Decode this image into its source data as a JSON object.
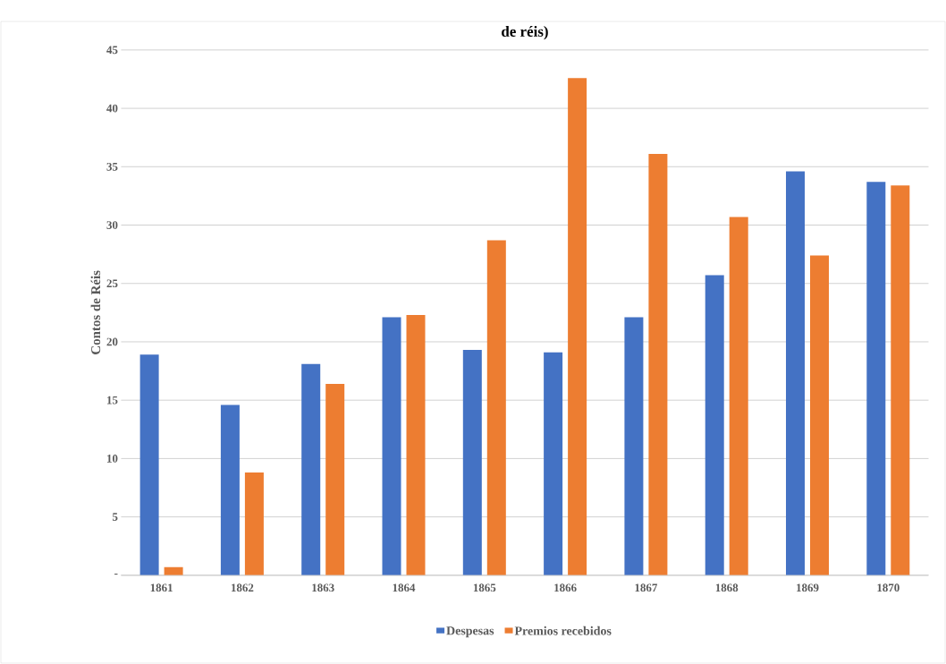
{
  "chart_data": {
    "type": "bar",
    "title": "de réis)",
    "ylabel": "Contos de Réis",
    "categories": [
      "1861",
      "1862",
      "1863",
      "1864",
      "1865",
      "1866",
      "1867",
      "1868",
      "1869",
      "1870"
    ],
    "series": [
      {
        "name": "Despesas",
        "color": "#4472c4",
        "values": [
          18.9,
          14.6,
          18.1,
          22.1,
          19.3,
          19.1,
          22.1,
          25.7,
          34.6,
          33.7
        ]
      },
      {
        "name": "Premios recebidos",
        "color": "#ed7d31",
        "values": [
          0.7,
          8.8,
          16.4,
          22.3,
          28.7,
          42.6,
          36.1,
          30.7,
          27.4,
          33.4
        ]
      }
    ],
    "ylim": [
      0,
      45
    ],
    "yticks": [
      {
        "value": 0,
        "label": "-"
      },
      5,
      10,
      15,
      20,
      25,
      30,
      35,
      40,
      45
    ],
    "grid": "y",
    "legend": "bottom"
  }
}
